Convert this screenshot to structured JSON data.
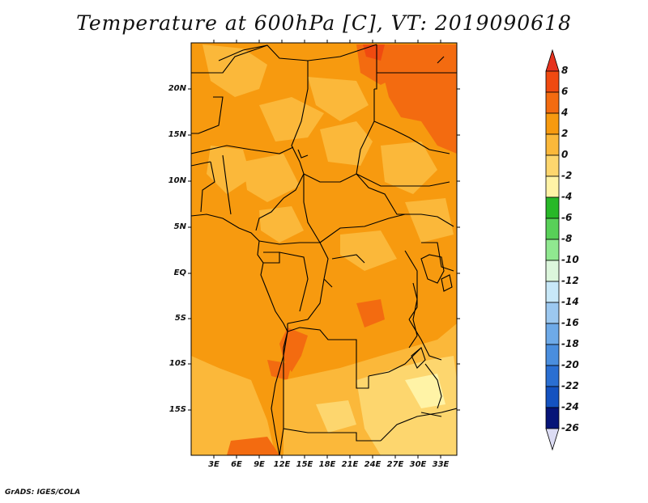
{
  "title": "Temperature at 600hPa [C], VT: 2019090618",
  "footer": "GrADS: IGES/COLA",
  "map": {
    "lat_labels": [
      "20N",
      "15N",
      "10N",
      "5N",
      "EQ",
      "5S",
      "10S",
      "15S"
    ],
    "lon_labels": [
      "3E",
      "6E",
      "9E",
      "12E",
      "15E",
      "18E",
      "21E",
      "24E",
      "27E",
      "30E",
      "33E"
    ]
  },
  "colorbar": {
    "labels": [
      "8",
      "6",
      "4",
      "2",
      "0",
      "-2",
      "-4",
      "-6",
      "-8",
      "-10",
      "-12",
      "-14",
      "-16",
      "-18",
      "-20",
      "-22",
      "-24",
      "-26"
    ],
    "colors": {
      "over": "#e6321e",
      "c6_8": "#f04a10",
      "c4_6": "#f36b10",
      "c2_4": "#f79a0f",
      "c0_2": "#fbb83a",
      "cm2_0": "#fdd66e",
      "cm4_m2": "#fff3a6",
      "cm6_m4": "#28b828",
      "cm8_m6": "#58d058",
      "cm10_m8": "#90e890",
      "cm12_m10": "#dcf6dc",
      "cm14_m12": "#c8e8f8",
      "cm16_m14": "#9cc8f0",
      "cm18_m16": "#6eaae8",
      "cm20_m18": "#4a8ede",
      "cm22_m20": "#2a6fd2",
      "cm24_m22": "#1452c0",
      "cm26_m24": "#0a36a8",
      "under_band": "#061478",
      "under": "#dcdcf4"
    }
  }
}
